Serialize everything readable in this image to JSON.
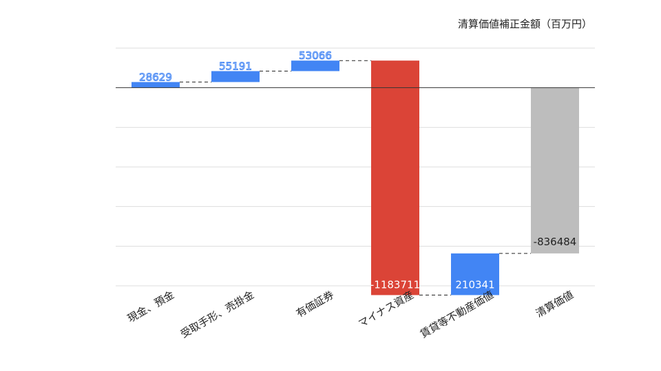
{
  "chart_data": {
    "type": "waterfall",
    "title": "清算価値補正金額（百万円）",
    "categories": [
      "現金、預金",
      "受取手形、売掛金",
      "有価証券",
      "マイナス資産",
      "賃貸等不動産価値",
      "清算価値"
    ],
    "values": [
      28629,
      55191,
      53066,
      -1183711,
      210341,
      -836484
    ],
    "labels": [
      "28629",
      "55191",
      "53066",
      "-1183711",
      "210341",
      "-836484"
    ],
    "kinds": [
      "delta",
      "delta",
      "delta",
      "delta",
      "delta",
      "total"
    ],
    "ylim": [
      -1000000,
      200000
    ],
    "grid": true,
    "legend": "none",
    "colors": {
      "increase": "#4285f4",
      "decrease": "#db4437",
      "total": "#bdbdbd",
      "grid": "#dddddd",
      "baseline": "#333333",
      "label_outline": "#4285f4"
    }
  }
}
